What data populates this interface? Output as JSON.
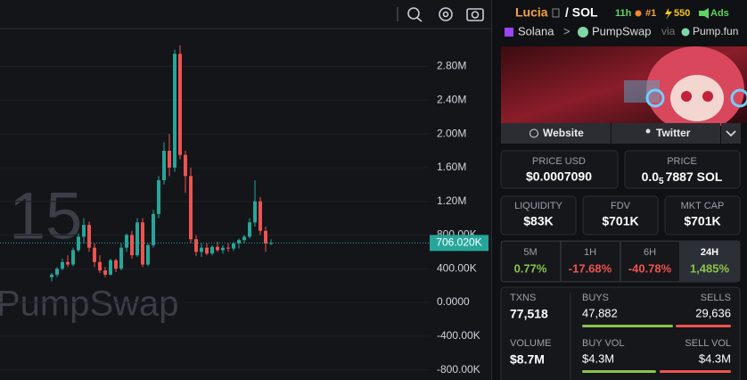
{
  "chart_data": {
    "type": "candlestick",
    "ylim": [
      -920000,
      3250000
    ],
    "yticks": [
      {
        "value": 2800000,
        "label": "2.80M"
      },
      {
        "value": 2400000,
        "label": "2.40M"
      },
      {
        "value": 2000000,
        "label": "2.00M"
      },
      {
        "value": 1600000,
        "label": "1.60M"
      },
      {
        "value": 1200000,
        "label": "1.20M"
      },
      {
        "value": 800000,
        "label": "800.00K"
      },
      {
        "value": 400000,
        "label": "400.00K"
      },
      {
        "value": 0,
        "label": "0.0000"
      },
      {
        "value": -400000,
        "label": "-400.00K"
      },
      {
        "value": -800000,
        "label": "-800.00K"
      }
    ],
    "grid": true,
    "up_color": "#26a69a",
    "down_color": "#ef5350",
    "open": [
      300000,
      330000,
      400000,
      480000,
      450000,
      620000,
      780000,
      920000,
      650000,
      480000,
      380000,
      330000,
      500000,
      400000,
      650000,
      800000,
      560000,
      950000,
      450000,
      680000,
      1050000,
      1450000,
      1800000,
      1600000,
      2950000,
      1750000,
      1500000,
      750000,
      600000,
      650000,
      580000,
      660000,
      620000,
      650000,
      640000,
      700000,
      740000,
      780000,
      950000,
      1200000,
      850000,
      700000
    ],
    "high": [
      350000,
      420000,
      520000,
      560000,
      650000,
      820000,
      1000000,
      960000,
      700000,
      560000,
      420000,
      520000,
      520000,
      700000,
      820000,
      850000,
      1000000,
      1000000,
      700000,
      1100000,
      1500000,
      1900000,
      2000000,
      3000000,
      3050000,
      1800000,
      1600000,
      800000,
      700000,
      700000,
      680000,
      720000,
      680000,
      700000,
      720000,
      760000,
      800000,
      1000000,
      1450000,
      1250000,
      900000,
      750000
    ],
    "low": [
      250000,
      300000,
      380000,
      420000,
      430000,
      600000,
      700000,
      600000,
      420000,
      350000,
      300000,
      320000,
      360000,
      380000,
      600000,
      520000,
      540000,
      420000,
      430000,
      650000,
      1000000,
      1400000,
      1500000,
      1550000,
      1700000,
      1300000,
      700000,
      550000,
      540000,
      560000,
      560000,
      600000,
      580000,
      600000,
      610000,
      640000,
      700000,
      760000,
      900000,
      800000,
      600000,
      680000
    ],
    "close": [
      330000,
      400000,
      480000,
      450000,
      620000,
      780000,
      920000,
      650000,
      480000,
      380000,
      330000,
      500000,
      400000,
      650000,
      800000,
      560000,
      950000,
      450000,
      680000,
      1050000,
      1450000,
      1800000,
      1600000,
      2950000,
      1750000,
      1500000,
      750000,
      600000,
      650000,
      580000,
      660000,
      620000,
      650000,
      640000,
      700000,
      740000,
      780000,
      950000,
      1200000,
      850000,
      700000,
      706020
    ],
    "last_price": {
      "value": 706020,
      "label": "706.020K"
    },
    "watermark": {
      "interval": "15",
      "source": "PumpSwap"
    }
  },
  "header": {
    "token": "Lucia",
    "pair": "/ SOL",
    "age": "11h",
    "rank": "#1",
    "boosts": "550",
    "ads": "Ads"
  },
  "route": {
    "chain": "Solana",
    "sep": ">",
    "dex": "PumpSwap",
    "via": "via",
    "launchpad": "Pump.fun"
  },
  "links": {
    "website": "Website",
    "twitter": "Twitter"
  },
  "price_usd": {
    "label": "PRICE USD",
    "value": "$0.0007090"
  },
  "price_native": {
    "label": "PRICE",
    "prefix": "0.0",
    "subscript": "5",
    "rest": "7887 SOL"
  },
  "stats": [
    {
      "label": "LIQUIDITY",
      "value": "$83K"
    },
    {
      "label": "FDV",
      "value": "$701K"
    },
    {
      "label": "MKT CAP",
      "value": "$701K"
    }
  ],
  "changes": [
    {
      "label": "5M",
      "value": "0.77%"
    },
    {
      "label": "1H",
      "value": "-17.68%"
    },
    {
      "label": "6H",
      "value": "-40.78%"
    },
    {
      "label": "24H",
      "value": "1,485%"
    }
  ],
  "txns": {
    "label": "TXNS",
    "value": "77,518",
    "buys_label": "BUYS",
    "buys": "47,882",
    "sells_label": "SELLS",
    "sells": "29,636"
  },
  "volume": {
    "label": "VOLUME",
    "value": "$8.7M",
    "buy_label": "BUY VOL",
    "buy": "$4.3M",
    "sell_label": "SELL VOL",
    "sell": "$4.3M"
  }
}
